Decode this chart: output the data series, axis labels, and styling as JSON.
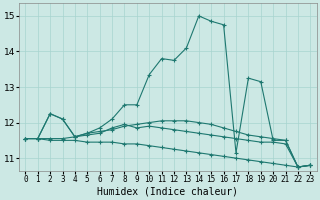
{
  "xlabel": "Humidex (Indice chaleur)",
  "bg_color": "#cce8e4",
  "grid_color": "#a8d4cf",
  "line_color": "#1e7870",
  "xlim": [
    -0.5,
    23.5
  ],
  "ylim": [
    10.65,
    15.35
  ],
  "yticks": [
    11,
    12,
    13,
    14,
    15
  ],
  "xticks": [
    0,
    1,
    2,
    3,
    4,
    5,
    6,
    7,
    8,
    9,
    10,
    11,
    12,
    13,
    14,
    15,
    16,
    17,
    18,
    19,
    20,
    21,
    22,
    23
  ],
  "series": [
    {
      "x": [
        0,
        1,
        2,
        3,
        4,
        5,
        6,
        7,
        8,
        9,
        10,
        11,
        12,
        13,
        14,
        15,
        16,
        17,
        18,
        19,
        20,
        21,
        22,
        23
      ],
      "y": [
        11.55,
        11.55,
        12.25,
        12.1,
        11.6,
        11.7,
        11.85,
        12.1,
        12.5,
        12.5,
        13.35,
        13.8,
        13.75,
        14.1,
        15.0,
        14.85,
        14.75,
        11.15,
        13.25,
        13.15,
        11.5,
        11.5,
        10.75,
        10.8
      ]
    },
    {
      "x": [
        0,
        1,
        2,
        3,
        4,
        5,
        6,
        7,
        8,
        9,
        10,
        11,
        12,
        13,
        14,
        15,
        16,
        17,
        18,
        19,
        20,
        21,
        22,
        23
      ],
      "y": [
        11.55,
        11.55,
        11.55,
        11.55,
        11.6,
        11.7,
        11.75,
        11.8,
        11.9,
        11.95,
        12.0,
        12.05,
        12.05,
        12.05,
        12.0,
        11.95,
        11.85,
        11.75,
        11.65,
        11.6,
        11.55,
        11.5,
        10.75,
        10.8
      ]
    },
    {
      "x": [
        0,
        1,
        2,
        3,
        4,
        5,
        6,
        7,
        8,
        9,
        10,
        11,
        12,
        13,
        14,
        15,
        16,
        17,
        18,
        19,
        20,
        21,
        22,
        23
      ],
      "y": [
        11.55,
        11.55,
        11.5,
        11.5,
        11.5,
        11.45,
        11.45,
        11.45,
        11.4,
        11.4,
        11.35,
        11.3,
        11.25,
        11.2,
        11.15,
        11.1,
        11.05,
        11.0,
        10.95,
        10.9,
        10.85,
        10.8,
        10.75,
        10.8
      ]
    },
    {
      "x": [
        0,
        1,
        2,
        3,
        4,
        5,
        6,
        7,
        8,
        9,
        10,
        11,
        12,
        13,
        14,
        15,
        16,
        17,
        18,
        19,
        20,
        21,
        22,
        23
      ],
      "y": [
        11.55,
        11.55,
        12.25,
        12.1,
        11.6,
        11.65,
        11.7,
        11.85,
        11.95,
        11.85,
        11.9,
        11.85,
        11.8,
        11.75,
        11.7,
        11.65,
        11.6,
        11.55,
        11.5,
        11.45,
        11.45,
        11.4,
        10.75,
        10.8
      ]
    }
  ]
}
